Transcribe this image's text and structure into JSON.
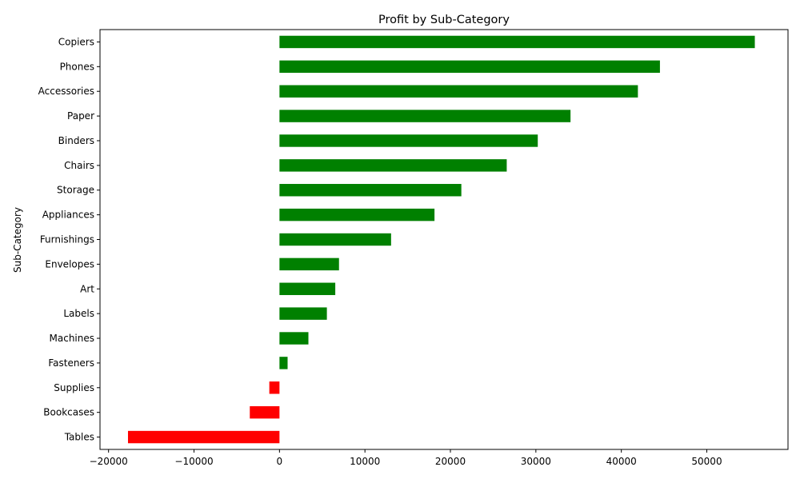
{
  "chart_data": {
    "type": "bar",
    "orientation": "horizontal",
    "title": "Profit by Sub-Category",
    "xlabel": "",
    "ylabel": "Sub-Category",
    "xlim": [
      -21000,
      59500
    ],
    "xticks": [
      -20000,
      -10000,
      0,
      10000,
      20000,
      30000,
      40000,
      50000
    ],
    "xtick_labels": [
      "−20000",
      "−10000",
      "0",
      "10000",
      "20000",
      "30000",
      "40000",
      "50000"
    ],
    "grid": false,
    "legend": "none",
    "categories": [
      "Copiers",
      "Phones",
      "Accessories",
      "Paper",
      "Binders",
      "Chairs",
      "Storage",
      "Appliances",
      "Furnishings",
      "Envelopes",
      "Art",
      "Labels",
      "Machines",
      "Fasteners",
      "Supplies",
      "Bookcases",
      "Tables"
    ],
    "values": [
      55618,
      44516,
      41937,
      34053,
      30222,
      26590,
      21279,
      18138,
      13059,
      6964,
      6528,
      5546,
      3385,
      950,
      -1189,
      -3473,
      -17725
    ],
    "colors": {
      "positive": "#008000",
      "negative": "#ff0000"
    }
  }
}
